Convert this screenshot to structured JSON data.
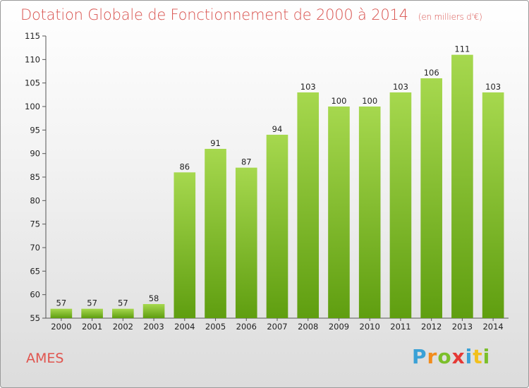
{
  "title": "Dotation Globale de Fonctionnement de 2000 à 2014",
  "unit": "(en milliers d'€)",
  "place": "AMES",
  "logo": {
    "letters": [
      "P",
      "r",
      "o",
      "x",
      "i",
      "t",
      "i"
    ],
    "colors": [
      "#3aa1d6",
      "#f28c1c",
      "#7bbf2a",
      "#e53935",
      "#3aa1d6",
      "#f2c01c",
      "#7bbf2a"
    ]
  },
  "colors": {
    "bar_light": "#a6d84e",
    "bar_dark": "#5f9e10",
    "title": "#d9534f",
    "place": "#e0544e"
  },
  "chart_data": {
    "type": "bar",
    "categories": [
      "2000",
      "2001",
      "2002",
      "2003",
      "2004",
      "2005",
      "2006",
      "2007",
      "2008",
      "2009",
      "2010",
      "2011",
      "2012",
      "2013",
      "2014"
    ],
    "values": [
      57,
      57,
      57,
      58,
      86,
      91,
      87,
      94,
      103,
      100,
      100,
      103,
      106,
      111,
      103
    ],
    "ylim": [
      55,
      115
    ],
    "yticks": [
      55,
      60,
      65,
      70,
      75,
      80,
      85,
      90,
      95,
      100,
      105,
      110,
      115
    ],
    "grid": false,
    "legend": "none"
  }
}
